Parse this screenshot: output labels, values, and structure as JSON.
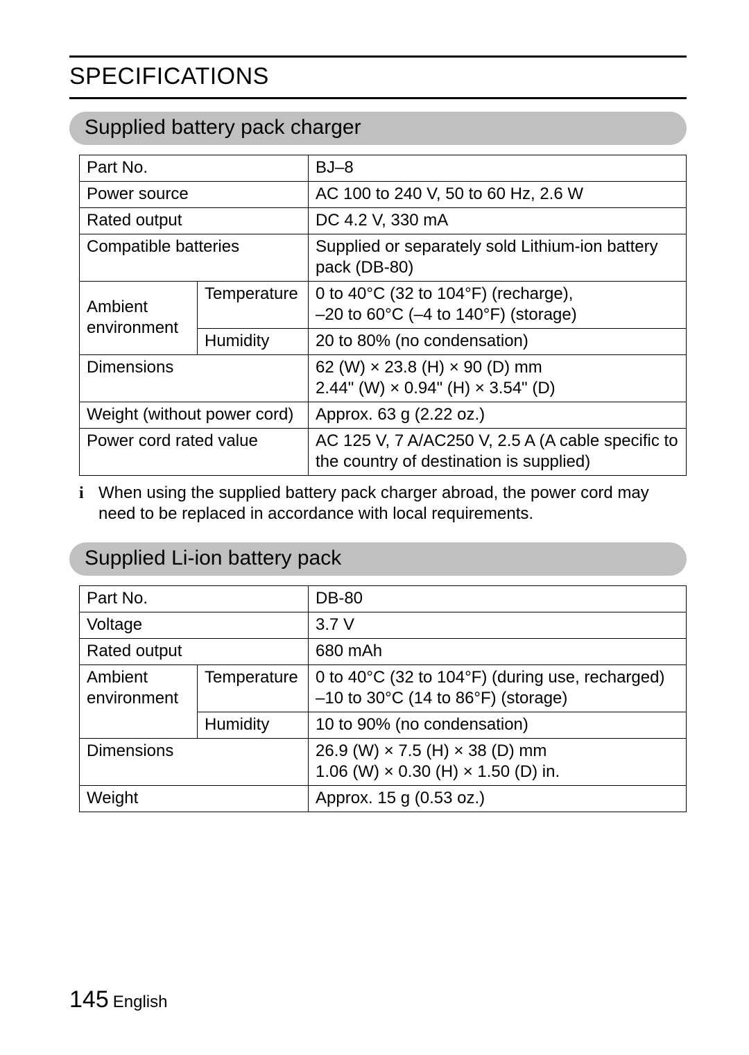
{
  "heading": "SPECIFICATIONS",
  "section1": {
    "title": "Supplied battery pack charger",
    "rows": {
      "part_no_label": "Part No.",
      "part_no_value": "BJ–8",
      "power_source_label": "Power source",
      "power_source_value": "AC 100 to 240 V, 50 to 60 Hz, 2.6 W",
      "rated_output_label": "Rated output",
      "rated_output_value": "DC 4.2 V, 330 mA",
      "compat_label": "Compatible batteries",
      "compat_value": "Supplied or separately sold Lithium-ion battery pack (DB-80)",
      "ambient_label": "Ambient environment",
      "temp_label": "Temperature",
      "temp_value": "0 to 40°C (32 to 104°F) (recharge),\n–20 to 60°C (–4 to 140°F) (storage)",
      "humidity_label": "Humidity",
      "humidity_value": "20 to 80% (no condensation)",
      "dim_label": "Dimensions",
      "dim_value": "62 (W) × 23.8 (H) × 90 (D) mm\n2.44\" (W) × 0.94\" (H) × 3.54\" (D)",
      "weight_label": "Weight (without power cord)",
      "weight_value": "Approx. 63 g (2.22 oz.)",
      "cord_label": "Power cord rated value",
      "cord_value": "AC 125 V, 7 A/AC250 V, 2.5 A (A cable specific to the country of destination is supplied)"
    },
    "note_bullet": "i",
    "note": "When using the supplied battery pack charger abroad, the power cord may need to be replaced in accordance with local requirements."
  },
  "section2": {
    "title": "Supplied Li-ion battery pack",
    "rows": {
      "part_no_label": "Part No.",
      "part_no_value": "DB-80",
      "voltage_label": "Voltage",
      "voltage_value": "3.7 V",
      "rated_output_label": "Rated output",
      "rated_output_value": "680 mAh",
      "ambient_label": "Ambient environment",
      "temp_label": "Temperature",
      "temp_value": "0 to 40°C (32 to 104°F) (during use, recharged)\n–10 to 30°C (14 to 86°F) (storage)",
      "humidity_label": "Humidity",
      "humidity_value": "10 to 90% (no condensation)",
      "dim_label": "Dimensions",
      "dim_value": "26.9 (W) × 7.5 (H) × 38 (D) mm\n1.06 (W) × 0.30 (H) × 1.50 (D) in.",
      "weight_label": "Weight",
      "weight_value": "Approx. 15 g (0.53 oz.)"
    }
  },
  "footer": {
    "page_number": "145",
    "language": "English"
  }
}
